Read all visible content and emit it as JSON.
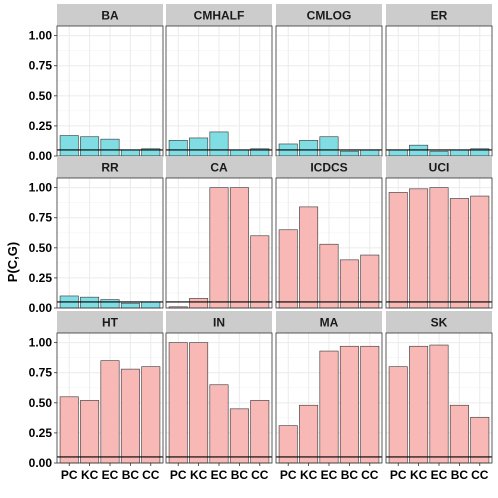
{
  "chart_data": {
    "type": "bar",
    "ylabel": "P(C,G)",
    "xlabel": "",
    "categories": [
      "PC",
      "KC",
      "EC",
      "BC",
      "CC"
    ],
    "ylim": [
      0,
      1.08
    ],
    "yticks": [
      "0.00",
      "0.25",
      "0.50",
      "0.75",
      "1.00"
    ],
    "ytick_values": [
      0,
      0.25,
      0.5,
      0.75,
      1.0
    ],
    "reference_line": 0.05,
    "grid": true,
    "colors": {
      "group_a": "#7fdde3",
      "group_b": "#f8b9b6",
      "strip": "#cccccc",
      "grid": "#ebebeb",
      "bar_outline": "#333333"
    },
    "panels": [
      {
        "name": "BA",
        "color_group": "group_a",
        "values": [
          0.17,
          0.16,
          0.14,
          0.05,
          0.06
        ]
      },
      {
        "name": "CMHALF",
        "color_group": "group_a",
        "values": [
          0.13,
          0.15,
          0.2,
          0.05,
          0.06
        ]
      },
      {
        "name": "CMLOG",
        "color_group": "group_a",
        "values": [
          0.1,
          0.13,
          0.16,
          0.04,
          0.05
        ]
      },
      {
        "name": "ER",
        "color_group": "group_a",
        "values": [
          0.05,
          0.09,
          0.04,
          0.05,
          0.06
        ]
      },
      {
        "name": "RR",
        "color_group": "group_a",
        "values": [
          0.1,
          0.09,
          0.07,
          0.04,
          0.05
        ]
      },
      {
        "name": "CA",
        "color_group": "group_b",
        "values": [
          0.01,
          0.08,
          1.0,
          1.0,
          0.6
        ]
      },
      {
        "name": "ICDCS",
        "color_group": "group_b",
        "values": [
          0.65,
          0.84,
          0.53,
          0.4,
          0.44
        ]
      },
      {
        "name": "UCI",
        "color_group": "group_b",
        "values": [
          0.96,
          0.99,
          1.0,
          0.91,
          0.93
        ]
      },
      {
        "name": "HT",
        "color_group": "group_b",
        "values": [
          0.55,
          0.52,
          0.85,
          0.78,
          0.8
        ]
      },
      {
        "name": "IN",
        "color_group": "group_b",
        "values": [
          1.0,
          1.0,
          0.65,
          0.45,
          0.52
        ]
      },
      {
        "name": "MA",
        "color_group": "group_b",
        "values": [
          0.31,
          0.48,
          0.93,
          0.97,
          0.97
        ]
      },
      {
        "name": "SK",
        "color_group": "group_b",
        "values": [
          0.8,
          0.97,
          0.98,
          0.48,
          0.38
        ]
      }
    ]
  }
}
